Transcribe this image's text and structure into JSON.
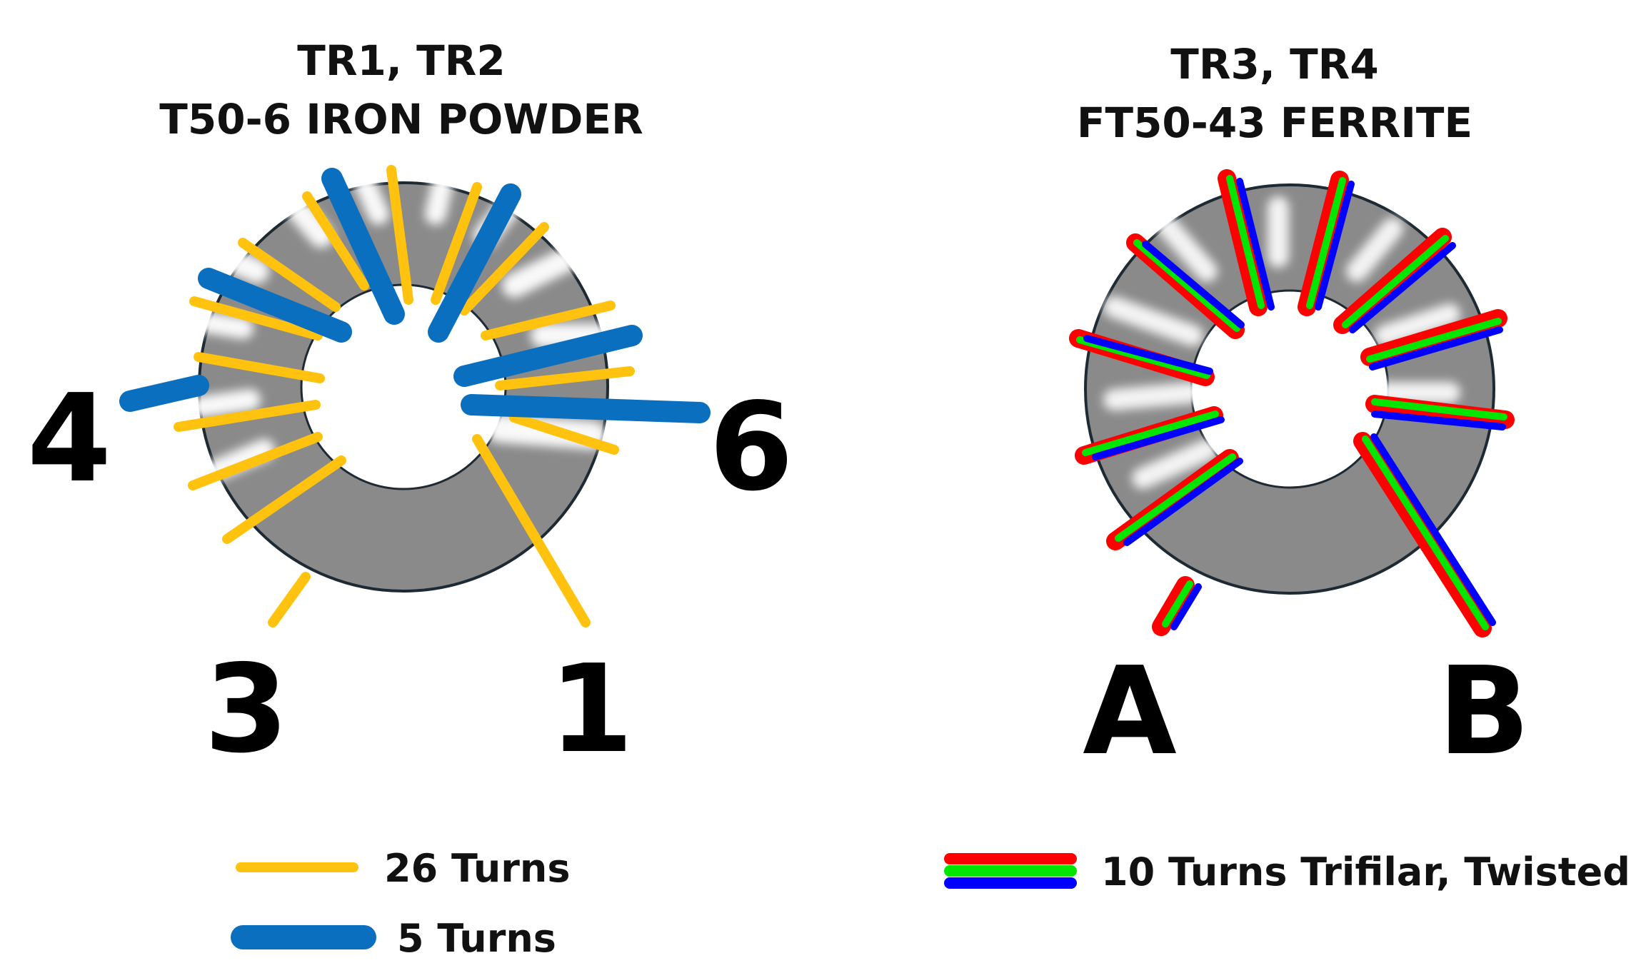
{
  "colors": {
    "core_gray": "#8a8a8a",
    "core_outline": "#1e2a33",
    "wire_yellow": "#ffc20e",
    "wire_blue": "#0b6fc0",
    "trifilar_red": "#ff0000",
    "trifilar_green": "#00e600",
    "trifilar_blue": "#0000ff"
  },
  "left": {
    "title_line1": "TR1, TR2",
    "title_line2": "T50-6 IRON POWDER",
    "terminals": {
      "t4": "4",
      "t6": "6",
      "t3": "3",
      "t1": "1"
    }
  },
  "right": {
    "title_line1": "TR3, TR4",
    "title_line2": "FT50-43 FERRITE",
    "terminals": {
      "a": "A",
      "b": "B"
    }
  },
  "legend": {
    "yellow_label": "26 Turns",
    "blue_label": "5 Turns",
    "trifilar_label": "10 Turns Trifilar, Twisted"
  }
}
